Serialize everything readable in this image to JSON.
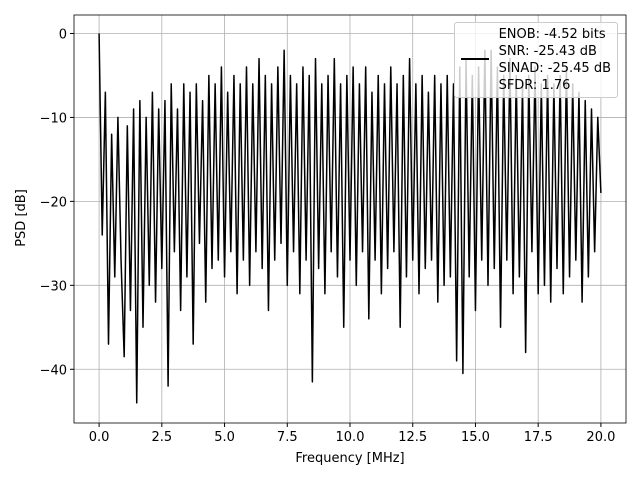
{
  "chart_data": {
    "type": "line",
    "xlabel": "Frequency [MHz]",
    "ylabel": "PSD [dB]",
    "x": [
      0,
      0.125,
      0.25,
      0.375,
      0.5,
      0.625,
      0.75,
      0.875,
      1,
      1.125,
      1.25,
      1.375,
      1.5,
      1.625,
      1.75,
      1.875,
      2,
      2.125,
      2.25,
      2.375,
      2.5,
      2.625,
      2.75,
      2.875,
      3,
      3.125,
      3.25,
      3.375,
      3.5,
      3.625,
      3.75,
      3.875,
      4,
      4.125,
      4.25,
      4.375,
      4.5,
      4.625,
      4.75,
      4.875,
      5,
      5.125,
      5.25,
      5.375,
      5.5,
      5.625,
      5.75,
      5.875,
      6,
      6.125,
      6.25,
      6.375,
      6.5,
      6.625,
      6.75,
      6.875,
      7,
      7.125,
      7.25,
      7.375,
      7.5,
      7.625,
      7.75,
      7.875,
      8,
      8.125,
      8.25,
      8.375,
      8.5,
      8.625,
      8.75,
      8.875,
      9,
      9.125,
      9.25,
      9.375,
      9.5,
      9.625,
      9.75,
      9.875,
      10,
      10.125,
      10.25,
      10.375,
      10.5,
      10.625,
      10.75,
      10.875,
      11,
      11.125,
      11.25,
      11.375,
      11.5,
      11.625,
      11.75,
      11.875,
      12,
      12.125,
      12.25,
      12.375,
      12.5,
      12.625,
      12.75,
      12.875,
      13,
      13.125,
      13.25,
      13.375,
      13.5,
      13.625,
      13.75,
      13.875,
      14,
      14.125,
      14.25,
      14.375,
      14.5,
      14.625,
      14.75,
      14.875,
      15,
      15.125,
      15.25,
      15.375,
      15.5,
      15.625,
      15.75,
      15.875,
      16,
      16.125,
      16.25,
      16.375,
      16.5,
      16.625,
      16.75,
      16.875,
      17,
      17.125,
      17.25,
      17.375,
      17.5,
      17.625,
      17.75,
      17.875,
      18,
      18.125,
      18.25,
      18.375,
      18.5,
      18.625,
      18.75,
      18.875,
      19,
      19.125,
      19.25,
      19.375,
      19.5,
      19.625,
      19.75,
      19.875,
      20
    ],
    "series": [
      {
        "name": "ENOB: -4.52 bits\nSNR: -25.43 dB\nSINAD: -25.45 dB\nSFDR: 1.76",
        "color": "#000000",
        "values": [
          0,
          -24,
          -7,
          -37,
          -12,
          -29,
          -10,
          -27,
          -38.5,
          -11,
          -33,
          -9,
          -44,
          -8,
          -35,
          -10,
          -30,
          -7,
          -32,
          -9,
          -28,
          -8,
          -42,
          -6,
          -26,
          -9,
          -33,
          -6,
          -29,
          -7,
          -37,
          -6,
          -25,
          -8,
          -32,
          -5,
          -28,
          -6,
          -27,
          -4,
          -29,
          -7,
          -26,
          -5,
          -31,
          -6,
          -27,
          -4,
          -30,
          -6,
          -26,
          -3,
          -28,
          -5,
          -33,
          -6,
          -27,
          -4,
          -25,
          -2,
          -30,
          -5,
          -26,
          -6,
          -31,
          -4,
          -27,
          -5,
          -41.5,
          -3,
          -28,
          -6,
          -31,
          -5,
          -26,
          -3,
          -29,
          -6,
          -35,
          -5,
          -27,
          -4,
          -30,
          -6,
          -26,
          -4,
          -34,
          -7,
          -27,
          -5,
          -31,
          -6,
          -28,
          -4,
          -26,
          -6,
          -35,
          -5,
          -29,
          -3,
          -27,
          -6,
          -31,
          -5,
          -28,
          -7,
          -27,
          -5,
          -32,
          -6,
          -30,
          -5,
          -29,
          -6,
          -39,
          -4,
          -40.5,
          -3,
          -29,
          -5,
          -33,
          -4,
          -27,
          -2,
          -30,
          -2,
          -28,
          -4,
          -35,
          -5,
          -27,
          -3,
          -31,
          -5,
          -29,
          -6,
          -38,
          -5,
          -26,
          -4,
          -31,
          -6,
          -30,
          -5,
          -32,
          -6,
          -28,
          -5,
          -31,
          -4,
          -29,
          -6,
          -27,
          -7,
          -32,
          -8,
          -29,
          -9,
          -26,
          -10,
          -19
        ]
      }
    ],
    "xlim": [
      -1,
      21
    ],
    "ylim": [
      -46.4,
      2.2
    ],
    "xticks": [
      {
        "value": 0,
        "label": "0.0"
      },
      {
        "value": 2.5,
        "label": "2.5"
      },
      {
        "value": 5,
        "label": "5.0"
      },
      {
        "value": 7.5,
        "label": "7.5"
      },
      {
        "value": 10,
        "label": "10.0"
      },
      {
        "value": 12.5,
        "label": "12.5"
      },
      {
        "value": 15,
        "label": "15.0"
      },
      {
        "value": 17.5,
        "label": "17.5"
      },
      {
        "value": 20,
        "label": "20.0"
      }
    ],
    "yticks": [
      0,
      {
        "value": -10,
        "label": "−10"
      },
      {
        "value": -20,
        "label": "−20"
      },
      {
        "value": -30,
        "label": "−30"
      },
      {
        "value": -40,
        "label": "−40"
      }
    ],
    "grid": true,
    "legend": "upper right"
  }
}
